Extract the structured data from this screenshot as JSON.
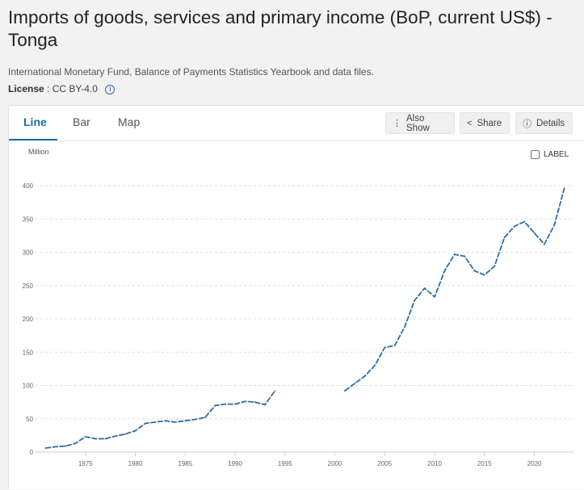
{
  "header": {
    "title": "Imports of goods, services and primary income (BoP, current US$) - Tonga",
    "source": "International Monetary Fund, Balance of Payments Statistics Yearbook and data files.",
    "license_label": "License",
    "license_value": ": CC BY-4.0",
    "info_glyph": "i"
  },
  "tabs": [
    {
      "label": "Line",
      "active": true
    },
    {
      "label": "Bar",
      "active": false
    },
    {
      "label": "Map",
      "active": false
    }
  ],
  "toolbar": {
    "also_show": {
      "label": "Also Show",
      "icon": "more-vertical-icon",
      "glyph": "⋮"
    },
    "share": {
      "label": "Share",
      "icon": "share-icon",
      "glyph": "<"
    },
    "details": {
      "label": "Details",
      "icon": "info-circle-icon",
      "glyph": "ⓘ"
    }
  },
  "label_toggle": "LABEL",
  "colors": {
    "line": "#2e6da4",
    "accent": "#1a6dab",
    "grid": "#e0e0e0"
  },
  "chart_data": {
    "type": "line",
    "title": "Imports of goods, services and primary income (BoP, current US$) - Tonga",
    "xlabel": "",
    "ylabel": "Million",
    "xlim": [
      1970,
      2024
    ],
    "ylim": [
      0,
      400
    ],
    "x_ticks": [
      1975,
      1980,
      1985,
      1990,
      1995,
      2000,
      2005,
      2010,
      2015,
      2020
    ],
    "y_ticks": [
      0,
      50,
      100,
      150,
      200,
      250,
      300,
      350,
      400
    ],
    "grid": true,
    "series": [
      {
        "name": "Tonga",
        "segments": [
          {
            "x": [
              1971,
              1972,
              1973,
              1974,
              1975,
              1976,
              1977,
              1978,
              1979,
              1980,
              1981,
              1982,
              1983,
              1984,
              1985,
              1986,
              1987,
              1988,
              1989,
              1990,
              1991,
              1992,
              1993,
              1994
            ],
            "y": [
              6,
              8,
              9,
              13,
              23,
              20,
              20,
              24,
              27,
              32,
              43,
              45,
              47,
              45,
              47,
              49,
              52,
              70,
              72,
              72,
              76,
              75,
              71,
              92
            ]
          },
          {
            "x": [
              2001,
              2002,
              2003,
              2004,
              2005,
              2006,
              2007,
              2008,
              2009,
              2010,
              2011,
              2012,
              2013,
              2014,
              2015,
              2016,
              2017,
              2018,
              2019,
              2020,
              2021,
              2022,
              2023
            ],
            "y": [
              92,
              103,
              114,
              130,
              157,
              160,
              188,
              228,
              246,
              233,
              272,
              297,
              294,
              272,
              266,
              279,
              322,
              339,
              346,
              329,
              312,
              341,
              396
            ]
          }
        ]
      }
    ]
  }
}
